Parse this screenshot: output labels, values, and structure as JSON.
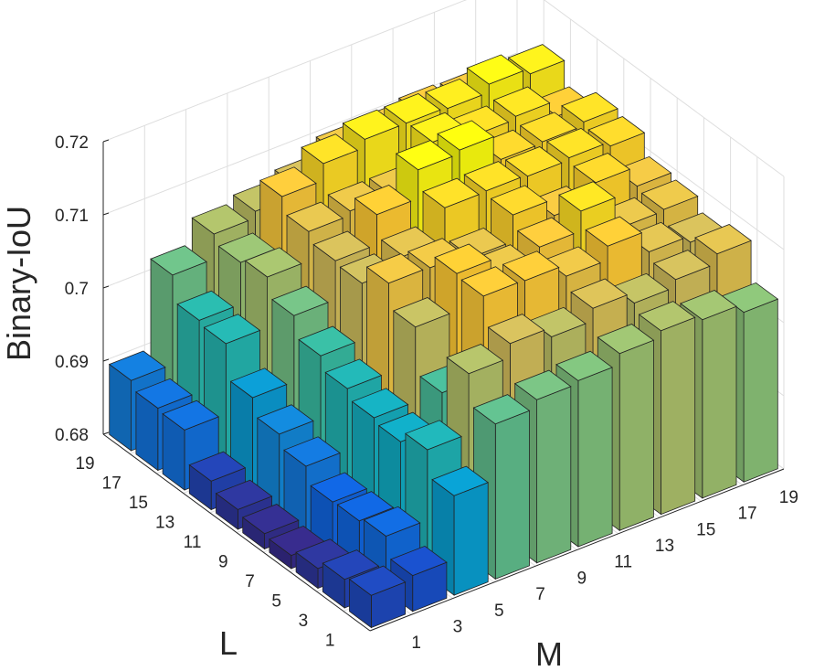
{
  "chart_data": {
    "type": "bar3d",
    "xlabel": "M",
    "ylabel": "L",
    "zlabel": "Binary-IoU",
    "x_values": [
      1,
      3,
      5,
      7,
      9,
      11,
      13,
      15,
      17,
      19
    ],
    "y_values": [
      1,
      3,
      5,
      7,
      9,
      11,
      13,
      15,
      17,
      19
    ],
    "x_tick_labels": [
      "1",
      "3",
      "5",
      "7",
      "9",
      "11",
      "13",
      "15",
      "17",
      "19"
    ],
    "y_tick_labels": [
      "1",
      "3",
      "5",
      "7",
      "9",
      "11",
      "13",
      "15",
      "17",
      "19"
    ],
    "z_tick_labels": [
      "0.68",
      "0.69",
      "0.7",
      "0.71",
      "0.72"
    ],
    "z_ticks": [
      0.68,
      0.69,
      0.7,
      0.71,
      0.72
    ],
    "zlim": [
      0.68,
      0.72
    ],
    "grid": true,
    "colormap": "parula",
    "colormap_stops": [
      "#352a87",
      "#0f5cdd",
      "#1481d6",
      "#06a4ca",
      "#2eb7a4",
      "#87bf77",
      "#d1bb59",
      "#fec832",
      "#f9fb0e"
    ],
    "values_by_L_row": [
      [
        0.6844,
        0.6849,
        0.6936,
        0.7012,
        0.7023,
        0.7027,
        0.7042,
        0.7051,
        0.7044,
        0.7032
      ],
      [
        0.6839,
        0.6876,
        0.6972,
        0.7054,
        0.7073,
        0.706,
        0.7077,
        0.7062,
        0.7072,
        0.7085
      ],
      [
        0.6827,
        0.687,
        0.6956,
        0.7001,
        0.7111,
        0.711,
        0.7094,
        0.7113,
        0.7083,
        0.7074
      ],
      [
        0.6818,
        0.6869,
        0.6962,
        0.7064,
        0.7115,
        0.7092,
        0.7107,
        0.7134,
        0.709,
        0.7092
      ],
      [
        0.6821,
        0.6891,
        0.6975,
        0.7097,
        0.7096,
        0.7088,
        0.7124,
        0.7101,
        0.7124,
        0.7097
      ],
      [
        0.6827,
        0.6908,
        0.6993,
        0.707,
        0.7085,
        0.7129,
        0.713,
        0.7128,
        0.7131,
        0.7125
      ],
      [
        0.6839,
        0.6931,
        0.7021,
        0.7074,
        0.7115,
        0.7154,
        0.7159,
        0.7124,
        0.7126,
        0.7131
      ],
      [
        0.6882,
        0.6978,
        0.7047,
        0.7087,
        0.7093,
        0.7093,
        0.7143,
        0.713,
        0.7134,
        0.7112
      ],
      [
        0.6885,
        0.6983,
        0.704,
        0.7108,
        0.7131,
        0.7142,
        0.7142,
        0.714,
        0.7151,
        0.7143
      ],
      [
        0.6896,
        0.7018,
        0.7052,
        0.7061,
        0.7073,
        0.7096,
        0.7099,
        0.7105,
        0.7103,
        0.709
      ]
    ]
  }
}
